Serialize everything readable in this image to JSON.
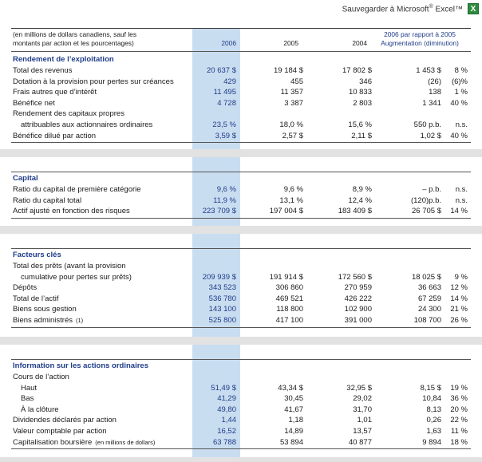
{
  "toolbar": {
    "save_label": "Sauvegarder à  Microsoft",
    "reg": "®",
    "excel_label": " Excel™",
    "excel_icon_glyph": "X"
  },
  "header": {
    "label_line1": "(en millions de dollars canadiens, sauf les",
    "label_line2": "montants par action et les pourcentages)",
    "col_2006": "2006",
    "col_2005": "2005",
    "col_2004": "2004",
    "cmp_line1": "2006 par rapport à 2005",
    "cmp_line2": "Augmentation (diminution)"
  },
  "sections": [
    {
      "title": "Rendement de l’exploitation",
      "rows": [
        {
          "label": "Total des revenus",
          "v2006": "20 637 $",
          "v2005": "19 184 $",
          "v2004": "17 802 $",
          "chg": "1 453 $",
          "pct": "8 %"
        },
        {
          "label": "Dotation à la provision pour pertes sur créances",
          "v2006": "429",
          "v2005": "455",
          "v2004": "346",
          "chg": "(26)",
          "pct": "(6)%"
        },
        {
          "label": "Frais autres que d’intérêt",
          "v2006": "11 495",
          "v2005": "11 357",
          "v2004": "10 833",
          "chg": "138",
          "pct": "1 %"
        },
        {
          "label": "Bénéfice net",
          "v2006": "4 728",
          "v2005": "3 387",
          "v2004": "2 803",
          "chg": "1 341",
          "pct": "40 %"
        },
        {
          "label": "Rendement des capitaux propres",
          "v2006": "",
          "v2005": "",
          "v2004": "",
          "chg": "",
          "pct": ""
        },
        {
          "label": "attribuables aux actionnaires ordinaires",
          "indent": true,
          "v2006": "23,5 %",
          "v2005": "18,0 %",
          "v2004": "15,6 %",
          "chg": "550 p.b.",
          "pct": "n.s."
        },
        {
          "label": "Bénéfice dilué par action",
          "v2006": "3,59 $",
          "v2005": "2,57 $",
          "v2004": "2,11 $",
          "chg": "1,02 $",
          "pct": "40 %"
        }
      ]
    },
    {
      "title": "Capital",
      "rows": [
        {
          "label": "Ratio du capital de première catégorie",
          "v2006": "9,6 %",
          "v2005": "9,6 %",
          "v2004": "8,9 %",
          "chg": "– p.b.",
          "pct": "n.s."
        },
        {
          "label": "Ratio du capital total",
          "v2006": "11,9 %",
          "v2005": "13,1 %",
          "v2004": "12,4 %",
          "chg": "(120)p.b.",
          "pct": "n.s."
        },
        {
          "label": "Actif ajusté en fonction des risques",
          "v2006": "223 709 $",
          "v2005": "197 004 $",
          "v2004": "183 409 $",
          "chg": "26 705 $",
          "pct": "14 %"
        }
      ]
    },
    {
      "title": "Facteurs clés",
      "rows": [
        {
          "label": "Total des prêts (avant la provision",
          "v2006": "",
          "v2005": "",
          "v2004": "",
          "chg": "",
          "pct": ""
        },
        {
          "label": "cumulative pour pertes sur prêts)",
          "indent": true,
          "v2006": "209 939 $",
          "v2005": "191 914 $",
          "v2004": "172 560 $",
          "chg": "18 025 $",
          "pct": "9 %"
        },
        {
          "label": "Dépôts",
          "v2006": "343 523",
          "v2005": "306 860",
          "v2004": "270 959",
          "chg": "36 663",
          "pct": "12 %"
        },
        {
          "label": "Total de l’actif",
          "v2006": "536 780",
          "v2005": "469 521",
          "v2004": "426 222",
          "chg": "67 259",
          "pct": "14 %"
        },
        {
          "label": "Biens sous gestion",
          "v2006": "143 100",
          "v2005": "118 800",
          "v2004": "102 900",
          "chg": "24 300",
          "pct": "21 %"
        },
        {
          "label": "Biens administrés",
          "note": "(1)",
          "v2006": "525 800",
          "v2005": "417 100",
          "v2004": "391 000",
          "chg": "108 700",
          "pct": "26 %"
        }
      ]
    },
    {
      "title": "Information sur les actions ordinaires",
      "rows": [
        {
          "label": "Cours de l’action",
          "v2006": "",
          "v2005": "",
          "v2004": "",
          "chg": "",
          "pct": ""
        },
        {
          "label": "Haut",
          "indent": true,
          "v2006": "51,49 $",
          "v2005": "43,34 $",
          "v2004": "32,95 $",
          "chg": "8,15 $",
          "pct": "19 %"
        },
        {
          "label": "Bas",
          "indent": true,
          "v2006": "41,29",
          "v2005": "30,45",
          "v2004": "29,02",
          "chg": "10,84",
          "pct": "36 %"
        },
        {
          "label": "À la clôture",
          "indent": true,
          "v2006": "49,80",
          "v2005": "41,67",
          "v2004": "31,70",
          "chg": "8,13",
          "pct": "20 %"
        },
        {
          "label": "Dividendes déclarés par action",
          "v2006": "1,44",
          "v2005": "1,18",
          "v2004": "1,01",
          "chg": "0,26",
          "pct": "22 %"
        },
        {
          "label": "Valeur comptable par action",
          "v2006": "16,52",
          "v2005": "14,89",
          "v2004": "13,57",
          "chg": "1,63",
          "pct": "11 %"
        },
        {
          "label": "Capitalisation boursière",
          "note": "(en millions de dollars)",
          "v2006": "63 788",
          "v2005": "53 894",
          "v2004": "40 877",
          "chg": "9 894",
          "pct": "18 %"
        }
      ]
    }
  ]
}
